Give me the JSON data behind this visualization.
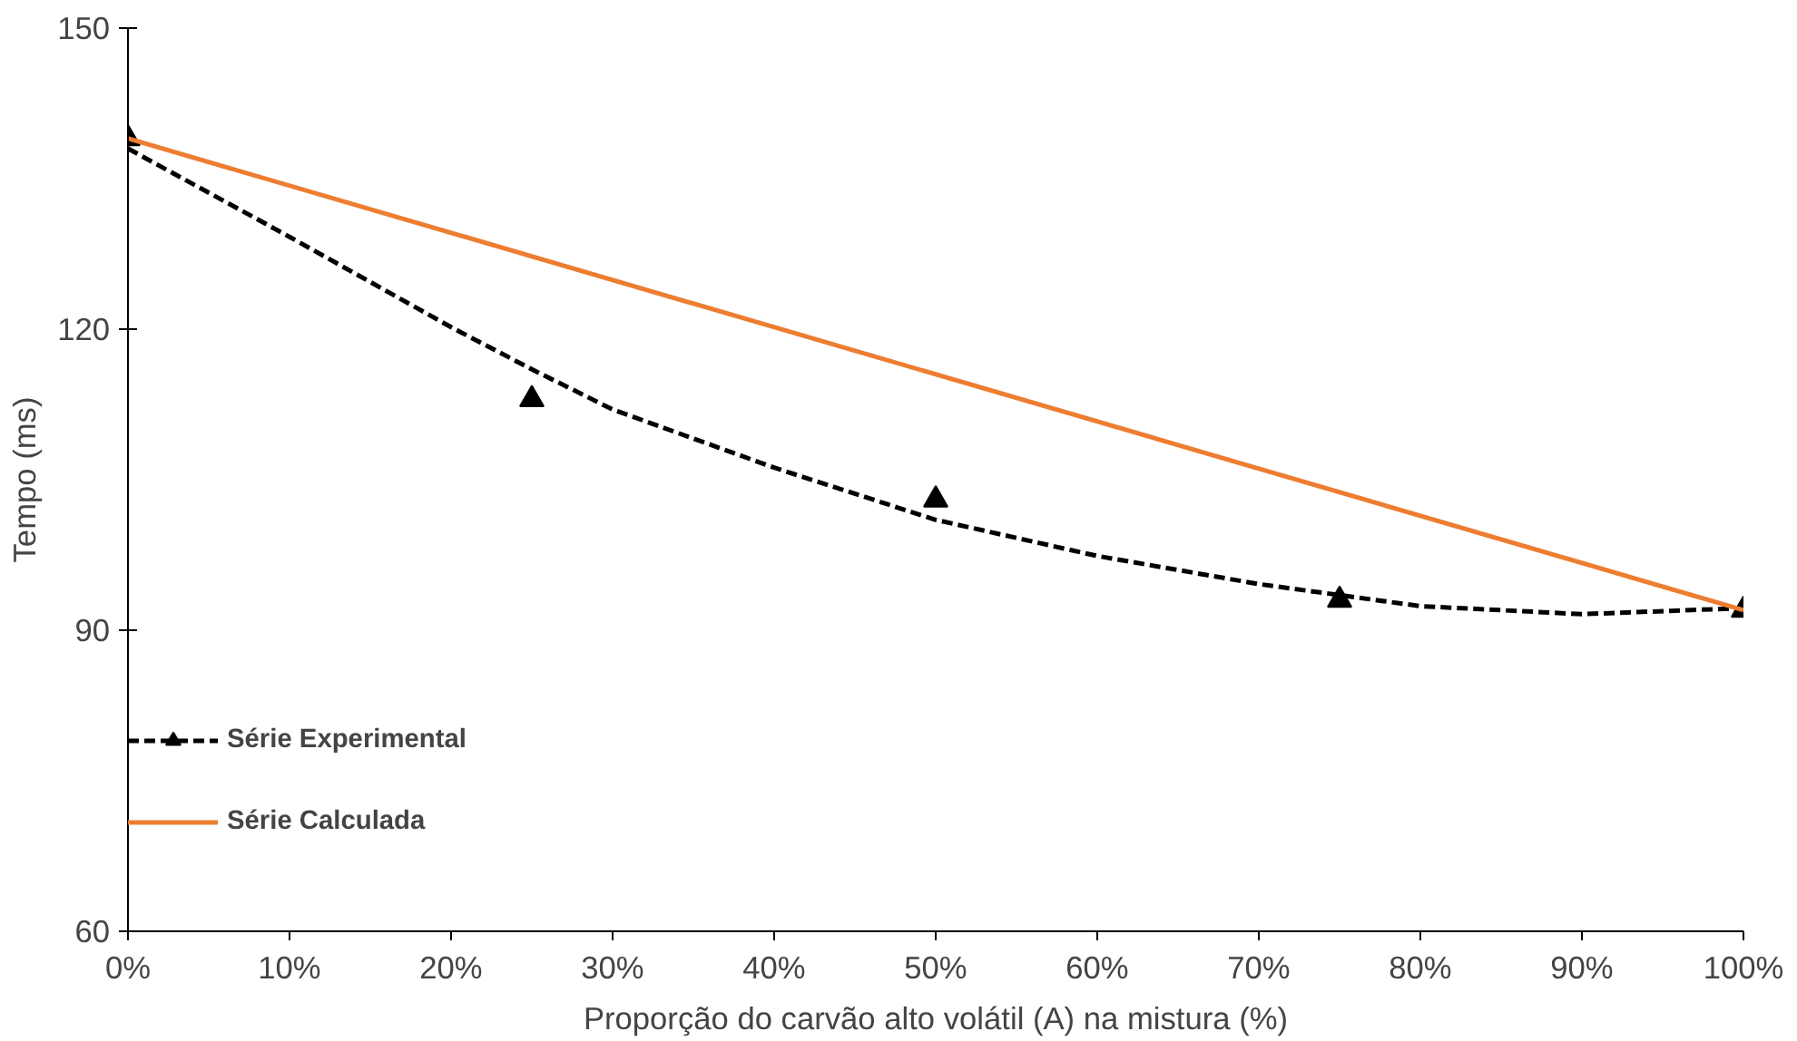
{
  "chart_data": {
    "type": "line",
    "xlabel": "Proporção do carvão alto volátil (A) na mistura (%)",
    "ylabel": "Tempo (ms)",
    "xlim": [
      0,
      100
    ],
    "xticks": [
      {
        "value": 0,
        "label": "0%"
      },
      {
        "value": 10,
        "label": "10%"
      },
      {
        "value": 20,
        "label": "20%"
      },
      {
        "value": 30,
        "label": "30%"
      },
      {
        "value": 40,
        "label": "40%"
      },
      {
        "value": 50,
        "label": "50%"
      },
      {
        "value": 60,
        "label": "60%"
      },
      {
        "value": 70,
        "label": "70%"
      },
      {
        "value": 80,
        "label": "80%"
      },
      {
        "value": 90,
        "label": "90%"
      },
      {
        "value": 100,
        "label": "100%"
      }
    ],
    "ylim": [
      60,
      150
    ],
    "yticks": [
      60,
      90,
      120,
      150
    ],
    "grid": false,
    "legend": "left",
    "series": [
      {
        "name": "Série Experimental",
        "type": "scatter",
        "marker": "triangle",
        "color": "#000000",
        "x": [
          0,
          25,
          50,
          75,
          100
        ],
        "values": [
          139,
          113,
          103,
          93,
          92
        ]
      },
      {
        "line_style": "dashed",
        "marker": "none",
        "color": "#000000",
        "x": [
          0,
          10,
          20,
          25,
          30,
          40,
          50,
          60,
          70,
          80,
          90,
          100
        ],
        "values": [
          138,
          129.2,
          120.2,
          116,
          112,
          106.2,
          101,
          97.4,
          94.6,
          92.4,
          91.6,
          92.2
        ]
      },
      {
        "name": "Série Calculada",
        "line_style": "solid",
        "marker": "none",
        "color": "#ed7d31",
        "x": [
          0,
          100
        ],
        "values": [
          139,
          92
        ]
      }
    ]
  }
}
